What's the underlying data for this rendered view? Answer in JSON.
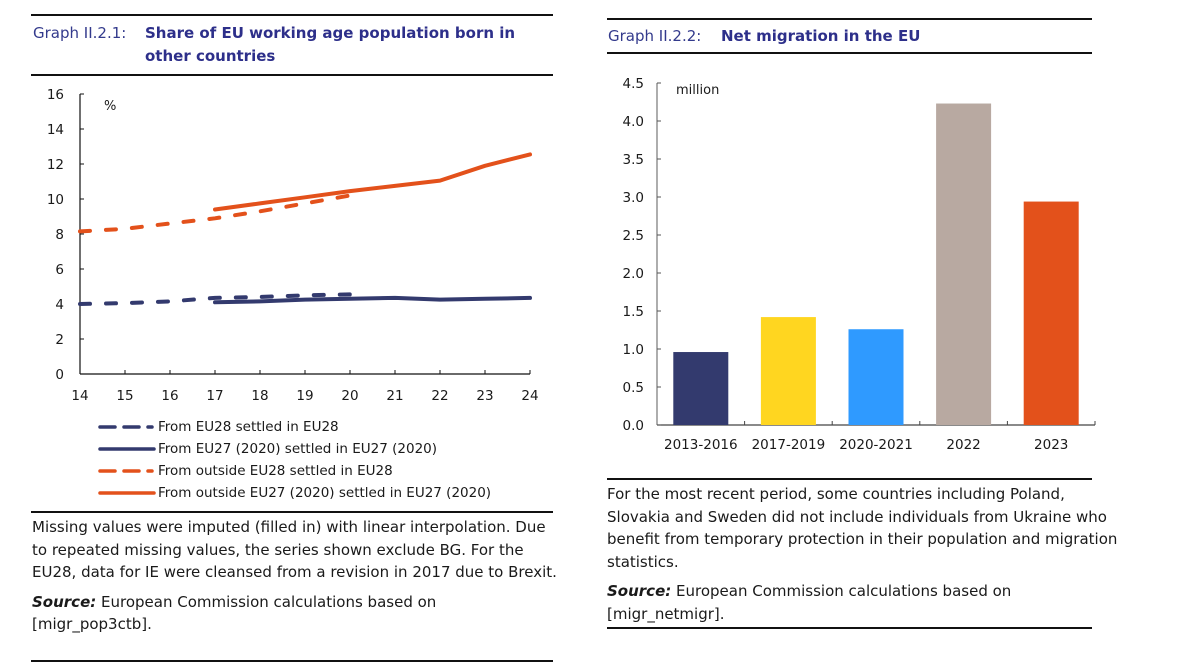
{
  "graph1": {
    "number": "Graph II.2.1:",
    "title_line1": "Share of EU working age population born in",
    "title_line2": "other countries",
    "note": "Missing values were imputed (filled in) with linear interpolation. Due to repeated missing values, the series shown exclude BG. For the EU28, data for IE were cleansed from a revision in 2017 due to Brexit.",
    "source_label": "Source:",
    "source_text": " European Commission calculations based on [migr_pop3ctb]."
  },
  "graph2": {
    "number": "Graph II.2.2:",
    "title": "Net migration in the EU",
    "note": "For the most recent period, some countries including Poland, Slovakia and Sweden did not include individuals from Ukraine who benefit from temporary protection in their population and migration statistics.",
    "source_label": "Source:",
    "source_text": " European Commission calculations based on [migr_netmigr]."
  },
  "chart_data": [
    {
      "type": "line",
      "title": "Share of EU working age population born in other countries",
      "ylabel": "%",
      "xlabel": "",
      "x": [
        14,
        15,
        16,
        17,
        18,
        19,
        20,
        21,
        22,
        23,
        24
      ],
      "xticks": [
        "14",
        "15",
        "16",
        "17",
        "18",
        "19",
        "20",
        "21",
        "22",
        "23",
        "24"
      ],
      "ylim": [
        0,
        16
      ],
      "yticks": [
        "0",
        "2",
        "4",
        "6",
        "8",
        "10",
        "12",
        "14",
        "16"
      ],
      "grid": false,
      "legend_position": "bottom",
      "series": [
        {
          "name": "From EU28 settled in EU28",
          "style": "dashed",
          "color": "#333a6e",
          "x": [
            14,
            15,
            16,
            17,
            18,
            19,
            20
          ],
          "values": [
            4.0,
            4.05,
            4.15,
            4.35,
            4.4,
            4.5,
            4.55
          ]
        },
        {
          "name": "From EU27 (2020) settled in EU27 (2020)",
          "style": "solid",
          "color": "#333a6e",
          "x": [
            17,
            18,
            19,
            20,
            21,
            22,
            23,
            24
          ],
          "values": [
            4.1,
            4.15,
            4.25,
            4.3,
            4.35,
            4.25,
            4.3,
            4.35
          ]
        },
        {
          "name": "From outside EU28 settled in EU28",
          "style": "dashed",
          "color": "#e3511b",
          "x": [
            14,
            15,
            16,
            17,
            18,
            19,
            20
          ],
          "values": [
            8.15,
            8.3,
            8.6,
            8.9,
            9.3,
            9.75,
            10.2
          ]
        },
        {
          "name": "From outside EU27 (2020) settled in EU27 (2020)",
          "style": "solid",
          "color": "#e3511b",
          "x": [
            17,
            18,
            19,
            20,
            21,
            22,
            23,
            24
          ],
          "values": [
            9.4,
            9.75,
            10.1,
            10.45,
            10.75,
            11.05,
            11.9,
            12.55
          ]
        }
      ]
    },
    {
      "type": "bar",
      "title": "Net migration in the EU",
      "ylabel": "million",
      "xlabel": "",
      "categories": [
        "2013-2016",
        "2017-2019",
        "2020-2021",
        "2022",
        "2023"
      ],
      "values": [
        0.96,
        1.42,
        1.26,
        4.23,
        2.94
      ],
      "colors": [
        "#333a6e",
        "#ffd620",
        "#2f9aff",
        "#b8a9a1",
        "#e3511b"
      ],
      "ylim": [
        0,
        4.5
      ],
      "yticks": [
        "0.0",
        "0.5",
        "1.0",
        "1.5",
        "2.0",
        "2.5",
        "3.0",
        "3.5",
        "4.0",
        "4.5"
      ],
      "grid": false
    }
  ]
}
